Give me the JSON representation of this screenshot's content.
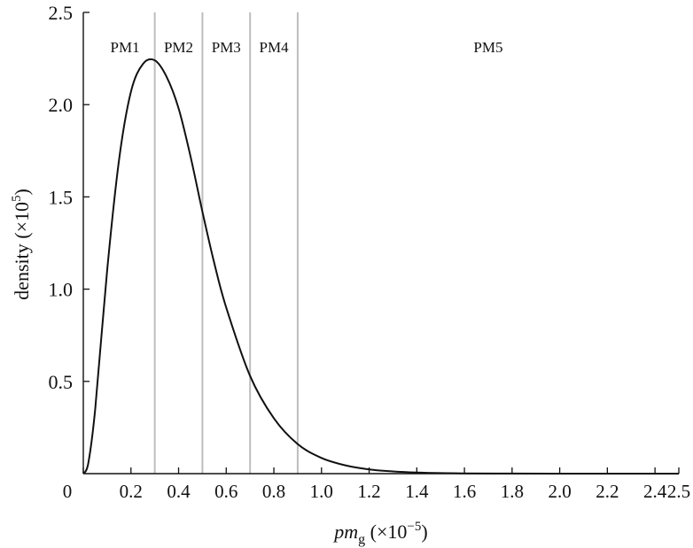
{
  "chart_data": {
    "type": "line",
    "xlabel_main": "pm",
    "xlabel_sub": "g",
    "xlabel_unit": " (×10",
    "xlabel_exp": "−5",
    "xlabel_close": ")",
    "ylabel_main": "density (×10",
    "ylabel_exp": "5",
    "ylabel_close": ")",
    "xlim": [
      0,
      2.5
    ],
    "ylim": [
      0,
      2.5
    ],
    "x_ticks": [
      0,
      0.2,
      0.4,
      0.6,
      0.8,
      1.0,
      1.2,
      1.4,
      1.6,
      1.8,
      2.0,
      2.2,
      2.4,
      2.5
    ],
    "x_tick_labels": [
      "0",
      "0.2",
      "0.4",
      "0.6",
      "0.8",
      "1.0",
      "1.2",
      "1.4",
      "1.6",
      "1.8",
      "2.0",
      "2.2",
      "2.4",
      "2.5"
    ],
    "y_ticks": [
      0.5,
      1.0,
      1.5,
      2.0,
      2.5
    ],
    "y_tick_labels": [
      "0.5",
      "1.0",
      "1.5",
      "2.0",
      "2.5"
    ],
    "boundaries": [
      0.3,
      0.5,
      0.7,
      0.9
    ],
    "regions": [
      {
        "label": "PM1",
        "x": 0.175
      },
      {
        "label": "PM2",
        "x": 0.4
      },
      {
        "label": "PM3",
        "x": 0.6
      },
      {
        "label": "PM4",
        "x": 0.8
      },
      {
        "label": "PM5",
        "x": 1.7
      }
    ],
    "series": [
      {
        "x": [
          0,
          0.02,
          0.05,
          0.1,
          0.15,
          0.2,
          0.25,
          0.3,
          0.35,
          0.4,
          0.45,
          0.5,
          0.55,
          0.6,
          0.7,
          0.8,
          0.9,
          1.0,
          1.1,
          1.2,
          1.3,
          1.4,
          1.5,
          1.6,
          1.8,
          2.0,
          2.2,
          2.4,
          2.5
        ],
        "y": [
          0,
          0.05,
          0.35,
          1.1,
          1.7,
          2.07,
          2.22,
          2.24,
          2.15,
          1.98,
          1.72,
          1.42,
          1.14,
          0.9,
          0.53,
          0.3,
          0.16,
          0.085,
          0.045,
          0.023,
          0.012,
          0.006,
          0.003,
          0.0015,
          0.0004,
          0.0001,
          0,
          0,
          0
        ]
      }
    ]
  }
}
